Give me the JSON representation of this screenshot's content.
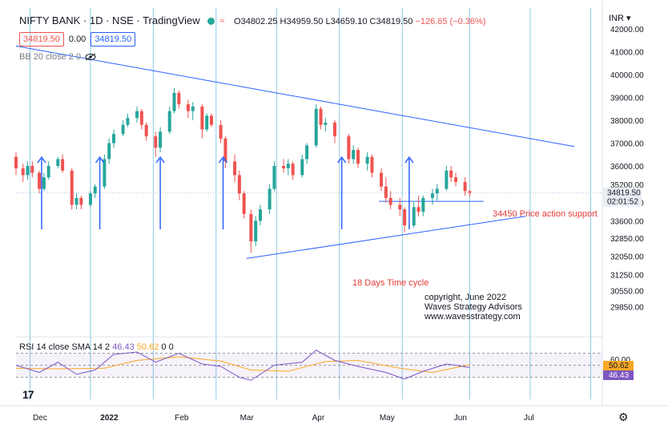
{
  "header": {
    "symbol": "NIFTY BANK · 1D · NSE · TradingView",
    "open_label": "O",
    "open": "34802.25",
    "high_label": "H",
    "high": "34959.50",
    "low_label": "L",
    "low": "34659.10",
    "close_label": "C",
    "close": "34819.50",
    "change": "−126.65 (−0.36%)",
    "sell_price": "34819.50",
    "spread": "0.00",
    "buy_price": "34819.50",
    "bb_label": "BB 20 close 2 0",
    "currency": "INR",
    "eye_icon": "eye-off-icon",
    "gear_icon": "gear-icon",
    "logo_text": "17"
  },
  "rsi": {
    "label": "RSI 14 close SMA 14 2",
    "value": "46.43",
    "sma_value": "50.62",
    "extra": "0",
    "extra2": "0",
    "ticks": [
      "60.00",
      "40.00"
    ],
    "badges": [
      "50.62",
      "46.43"
    ]
  },
  "colors": {
    "up": "#26a69a",
    "down": "#ef5350",
    "trend": "#2962ff",
    "rsi_line": "#7e57c2",
    "rsi_sma": "#f9a825",
    "annotation": "#e53935",
    "vline": "#8ec9e6"
  },
  "chart_data": {
    "type": "candlestick",
    "title": "NIFTY BANK · 1D · NSE · TradingView",
    "y_ticks": [
      "42000.00",
      "41000.00",
      "40000.00",
      "39000.00",
      "38000.00",
      "37000.00",
      "36000.00",
      "35200.00",
      "34400.00",
      "33600.00",
      "32850.00",
      "32050.00",
      "31250.00",
      "30550.00",
      "29850.00"
    ],
    "x_ticks": [
      "Dec",
      "2022",
      "Feb",
      "Mar",
      "Apr",
      "May",
      "Jun",
      "Jul"
    ],
    "last_price": "34819.50",
    "countdown": "02:01:52",
    "x_range": [
      "2021-11-26",
      "2022-08-05"
    ],
    "ohlc": [
      [
        "2021-11-26",
        36400,
        36600,
        35600,
        35900
      ],
      [
        "2021-11-29",
        35900,
        36100,
        35300,
        35600
      ],
      [
        "2021-12-01",
        35600,
        36200,
        35400,
        36000
      ],
      [
        "2021-12-03",
        36000,
        36200,
        35500,
        35700
      ],
      [
        "2021-12-06",
        35700,
        35800,
        34800,
        35000
      ],
      [
        "2021-12-08",
        35000,
        35700,
        34900,
        35500
      ],
      [
        "2021-12-10",
        35500,
        36200,
        35400,
        36000
      ],
      [
        "2021-12-14",
        36000,
        36400,
        35900,
        36300
      ],
      [
        "2021-12-16",
        36300,
        36500,
        35700,
        35800
      ],
      [
        "2021-12-20",
        35800,
        35900,
        34100,
        34300
      ],
      [
        "2021-12-22",
        34300,
        34800,
        34100,
        34600
      ],
      [
        "2021-12-24",
        34600,
        34700,
        34100,
        34300
      ],
      [
        "2021-12-28",
        34300,
        34900,
        34200,
        34800
      ],
      [
        "2021-12-30",
        34800,
        35200,
        34600,
        35100
      ],
      [
        "2022-01-03",
        35100,
        36500,
        35000,
        36300
      ],
      [
        "2022-01-05",
        36300,
        37200,
        36100,
        37000
      ],
      [
        "2022-01-07",
        37000,
        37600,
        36800,
        37400
      ],
      [
        "2022-01-11",
        37400,
        38000,
        37300,
        37800
      ],
      [
        "2022-01-13",
        37800,
        38300,
        37700,
        38100
      ],
      [
        "2022-01-17",
        38100,
        38600,
        37900,
        38400
      ],
      [
        "2022-01-19",
        38400,
        38500,
        37600,
        37800
      ],
      [
        "2022-01-21",
        37800,
        37900,
        37100,
        37300
      ],
      [
        "2022-01-25",
        37300,
        37500,
        36400,
        36800
      ],
      [
        "2022-01-27",
        36800,
        37700,
        36600,
        37500
      ],
      [
        "2022-01-31",
        37500,
        38600,
        37400,
        38400
      ],
      [
        "2022-02-02",
        38400,
        39400,
        38300,
        39200
      ],
      [
        "2022-02-04",
        39200,
        39300,
        38500,
        38700
      ],
      [
        "2022-02-08",
        38700,
        38900,
        38100,
        38400
      ],
      [
        "2022-02-10",
        38400,
        38800,
        38000,
        38600
      ],
      [
        "2022-02-14",
        38600,
        38700,
        37200,
        37600
      ],
      [
        "2022-02-16",
        37600,
        38300,
        37500,
        38200
      ],
      [
        "2022-02-18",
        38200,
        38300,
        37700,
        37800
      ],
      [
        "2022-02-22",
        37800,
        38000,
        37000,
        37200
      ],
      [
        "2022-02-24",
        37200,
        37300,
        35900,
        36200
      ],
      [
        "2022-02-28",
        36200,
        36500,
        35300,
        35600
      ],
      [
        "2022-03-02",
        35600,
        35800,
        34500,
        34800
      ],
      [
        "2022-03-04",
        34800,
        34900,
        33700,
        33900
      ],
      [
        "2022-03-07",
        33900,
        34100,
        32200,
        32700
      ],
      [
        "2022-03-09",
        32700,
        33800,
        32500,
        33600
      ],
      [
        "2022-03-11",
        33600,
        34300,
        33400,
        34100
      ],
      [
        "2022-03-15",
        34100,
        35200,
        33900,
        35000
      ],
      [
        "2022-03-17",
        35000,
        36200,
        34900,
        36000
      ],
      [
        "2022-03-21",
        36000,
        36300,
        35700,
        35900
      ],
      [
        "2022-03-23",
        35900,
        36300,
        35600,
        36100
      ],
      [
        "2022-03-25",
        36100,
        36200,
        35400,
        35600
      ],
      [
        "2022-03-29",
        35600,
        36500,
        35500,
        36300
      ],
      [
        "2022-03-31",
        36300,
        37000,
        36100,
        36900
      ],
      [
        "2022-04-04",
        36900,
        38700,
        36800,
        38500
      ],
      [
        "2022-04-06",
        38500,
        38600,
        37600,
        37800
      ],
      [
        "2022-04-08",
        37800,
        38100,
        37500,
        37900
      ],
      [
        "2022-04-12",
        37900,
        38000,
        37000,
        37300
      ],
      [
        "2022-04-18",
        37300,
        37400,
        36100,
        36300
      ],
      [
        "2022-04-20",
        36300,
        36900,
        36100,
        36700
      ],
      [
        "2022-04-22",
        36700,
        36800,
        35900,
        36100
      ],
      [
        "2022-04-26",
        36100,
        36600,
        35800,
        36400
      ],
      [
        "2022-04-28",
        36400,
        36500,
        35500,
        35700
      ],
      [
        "2022-05-02",
        35700,
        35900,
        34900,
        35100
      ],
      [
        "2022-05-04",
        35100,
        35500,
        34400,
        34600
      ],
      [
        "2022-05-06",
        34600,
        34900,
        34100,
        34300
      ],
      [
        "2022-05-10",
        34300,
        34600,
        33800,
        34100
      ],
      [
        "2022-05-12",
        34100,
        34200,
        33100,
        33400
      ],
      [
        "2022-05-16",
        33400,
        34400,
        33300,
        34200
      ],
      [
        "2022-05-18",
        34200,
        34700,
        33800,
        34000
      ],
      [
        "2022-05-20",
        34000,
        34700,
        33800,
        34600
      ],
      [
        "2022-05-24",
        34600,
        35000,
        34300,
        34800
      ],
      [
        "2022-05-26",
        34800,
        35200,
        34500,
        35000
      ],
      [
        "2022-05-30",
        35000,
        36000,
        34900,
        35800
      ],
      [
        "2022-06-01",
        35800,
        36000,
        35300,
        35500
      ],
      [
        "2022-06-03",
        35500,
        35700,
        35100,
        35300
      ],
      [
        "2022-06-07",
        35300,
        35500,
        34700,
        34900
      ],
      [
        "2022-06-09",
        34900,
        34960,
        34660,
        34820
      ]
    ],
    "rsi_series": [
      [
        "2021-11-26",
        50
      ],
      [
        "2021-12-06",
        38
      ],
      [
        "2021-12-14",
        55
      ],
      [
        "2021-12-22",
        35
      ],
      [
        "2021-12-30",
        42
      ],
      [
        "2022-01-07",
        68
      ],
      [
        "2022-01-17",
        72
      ],
      [
        "2022-01-25",
        55
      ],
      [
        "2022-02-04",
        70
      ],
      [
        "2022-02-14",
        52
      ],
      [
        "2022-02-22",
        48
      ],
      [
        "2022-03-02",
        30
      ],
      [
        "2022-03-07",
        25
      ],
      [
        "2022-03-17",
        50
      ],
      [
        "2022-03-29",
        55
      ],
      [
        "2022-04-04",
        75
      ],
      [
        "2022-04-12",
        58
      ],
      [
        "2022-04-22",
        48
      ],
      [
        "2022-05-04",
        38
      ],
      [
        "2022-05-12",
        27
      ],
      [
        "2022-05-20",
        40
      ],
      [
        "2022-05-30",
        52
      ],
      [
        "2022-06-03",
        50
      ],
      [
        "2022-06-09",
        46
      ]
    ],
    "rsi_sma_series": [
      [
        "2021-11-26",
        45
      ],
      [
        "2021-12-14",
        44
      ],
      [
        "2022-01-03",
        45
      ],
      [
        "2022-01-17",
        58
      ],
      [
        "2022-02-04",
        64
      ],
      [
        "2022-02-22",
        57
      ],
      [
        "2022-03-07",
        42
      ],
      [
        "2022-03-23",
        40
      ],
      [
        "2022-04-08",
        56
      ],
      [
        "2022-04-22",
        58
      ],
      [
        "2022-05-10",
        45
      ],
      [
        "2022-05-24",
        38
      ],
      [
        "2022-06-09",
        50.6
      ]
    ],
    "annotations": {
      "support_label": "34450 Price action support",
      "cycle_label": "18 Days Time cycle",
      "copyright": [
        "copyright, June 2022",
        "Waves Strategy Advisors",
        "www.wavesstrategy.com"
      ]
    }
  }
}
